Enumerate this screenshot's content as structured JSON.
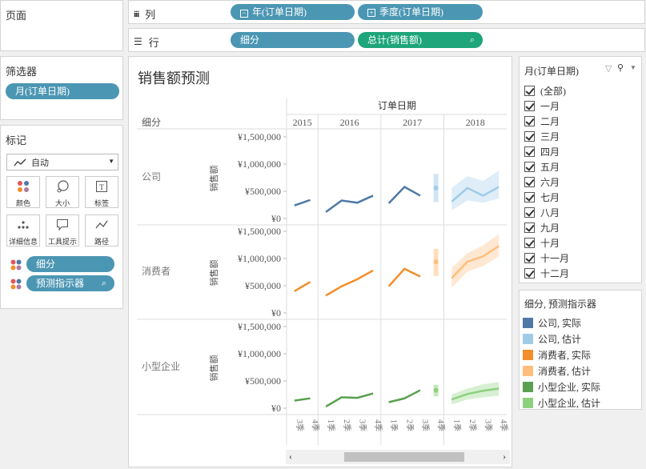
{
  "cards": {
    "pages": "页面",
    "filters": "筛选器",
    "marks": "标记"
  },
  "filter_pill": "月(订单日期)",
  "columns_shelf": {
    "label": "列",
    "pills": [
      "年(订单日期)",
      "季度(订单日期)"
    ]
  },
  "rows_shelf": {
    "label": "行",
    "pills": [
      "细分",
      "总计(销售额)"
    ]
  },
  "marks": {
    "type": "自动",
    "buttons": [
      "颜色",
      "大小",
      "标签",
      "详细信息",
      "工具提示",
      "路径"
    ],
    "fields": [
      "细分",
      "预测指示器"
    ]
  },
  "view": {
    "title": "销售额预测",
    "col_header": "订单日期",
    "row_header": "细分",
    "years": [
      "2015",
      "2016",
      "2017",
      "2018"
    ],
    "quarters": [
      "3季",
      "4季",
      "1季",
      "2季",
      "3季",
      "4季",
      "1季",
      "2季",
      "3季",
      "4季",
      "1季",
      "2季",
      "3季",
      "4季"
    ],
    "y_axis_title": "销售额",
    "y_ticks": [
      "¥1,500,000",
      "¥1,000,000",
      "¥500,000",
      "¥0"
    ]
  },
  "filter_card": {
    "title": "月(订单日期)",
    "items": [
      "(全部)",
      "一月",
      "二月",
      "三月",
      "四月",
      "五月",
      "六月",
      "七月",
      "八月",
      "九月",
      "十月",
      "十一月",
      "十二月"
    ]
  },
  "legend": {
    "title": "细分, 预测指示器",
    "items": [
      {
        "label": "公司, 实际",
        "color": "#4e79a7"
      },
      {
        "label": "公司, 估计",
        "color": "#a0cbe8"
      },
      {
        "label": "消费者, 实际",
        "color": "#f28e2b"
      },
      {
        "label": "消费者, 估计",
        "color": "#ffbe7d"
      },
      {
        "label": "小型企业, 实际",
        "color": "#59a14f"
      },
      {
        "label": "小型企业, 估计",
        "color": "#8cd17d"
      }
    ]
  },
  "chart_data": {
    "type": "line",
    "title": "销售额预测",
    "ylabel": "销售额",
    "ylim": [
      0,
      1500000
    ],
    "x": [
      "2015 Q3",
      "2015 Q4",
      "2016 Q1",
      "2016 Q2",
      "2016 Q3",
      "2016 Q4",
      "2017 Q1",
      "2017 Q2",
      "2017 Q3",
      "2017 Q4",
      "2018 Q1",
      "2018 Q2",
      "2018 Q3",
      "2018 Q4"
    ],
    "panels": [
      {
        "segment": "公司",
        "actual": [
          240000,
          340000,
          120000,
          330000,
          290000,
          420000,
          280000,
          580000,
          420000,
          null,
          null,
          null,
          null,
          null
        ],
        "estimate": [
          null,
          null,
          null,
          null,
          null,
          null,
          null,
          null,
          null,
          560000,
          310000,
          560000,
          420000,
          580000
        ],
        "estimate_low": [
          null,
          null,
          null,
          null,
          null,
          null,
          null,
          null,
          null,
          300000,
          150000,
          330000,
          290000,
          370000
        ],
        "estimate_high": [
          null,
          null,
          null,
          null,
          null,
          null,
          null,
          null,
          null,
          820000,
          560000,
          780000,
          690000,
          880000
        ]
      },
      {
        "segment": "消费者",
        "actual": [
          400000,
          570000,
          320000,
          490000,
          620000,
          780000,
          490000,
          810000,
          670000,
          null,
          null,
          null,
          null,
          null
        ],
        "estimate": [
          null,
          null,
          null,
          null,
          null,
          null,
          null,
          null,
          null,
          940000,
          640000,
          940000,
          1040000,
          1230000
        ],
        "estimate_low": [
          null,
          null,
          null,
          null,
          null,
          null,
          null,
          null,
          null,
          680000,
          460000,
          760000,
          860000,
          1040000
        ],
        "estimate_high": [
          null,
          null,
          null,
          null,
          null,
          null,
          null,
          null,
          null,
          1180000,
          830000,
          1100000,
          1240000,
          1450000
        ]
      },
      {
        "segment": "小型企业",
        "actual": [
          140000,
          180000,
          30000,
          200000,
          190000,
          270000,
          110000,
          180000,
          330000,
          null,
          null,
          null,
          null,
          null
        ],
        "estimate": [
          null,
          null,
          null,
          null,
          null,
          null,
          null,
          null,
          null,
          330000,
          160000,
          260000,
          320000,
          360000
        ],
        "estimate_low": [
          null,
          null,
          null,
          null,
          null,
          null,
          null,
          null,
          null,
          220000,
          70000,
          160000,
          200000,
          230000
        ],
        "estimate_high": [
          null,
          null,
          null,
          null,
          null,
          null,
          null,
          null,
          null,
          430000,
          250000,
          360000,
          440000,
          480000
        ]
      }
    ],
    "colors": {
      "公司": [
        "#4e79a7",
        "#a0cbe8"
      ],
      "消费者": [
        "#f28e2b",
        "#ffbe7d"
      ],
      "小型企业": [
        "#59a14f",
        "#8cd17d"
      ]
    }
  }
}
